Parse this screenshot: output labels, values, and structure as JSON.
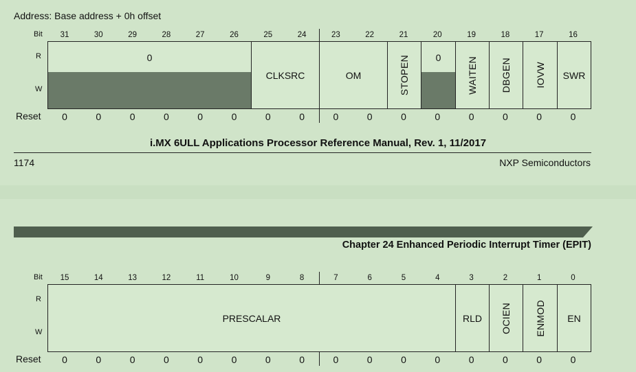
{
  "address_label": "Address: Base address + 0h offset",
  "bit_label": "Bit",
  "r_label": "R",
  "w_label": "W",
  "reset_label": "Reset",
  "top": {
    "bits": [
      "31",
      "30",
      "29",
      "28",
      "27",
      "26",
      "25",
      "24",
      "23",
      "22",
      "21",
      "20",
      "19",
      "18",
      "17",
      "16"
    ],
    "reserved_value": "0",
    "clksrc": "CLKSRC",
    "om": "OM",
    "stopen": "STOPEN",
    "bit20_value": "0",
    "waiten": "WAITEN",
    "dbgen": "DBGEN",
    "iovw": "IOVW",
    "swr": "SWR",
    "resets": [
      "0",
      "0",
      "0",
      "0",
      "0",
      "0",
      "0",
      "0",
      "0",
      "0",
      "0",
      "0",
      "0",
      "0",
      "0",
      "0"
    ]
  },
  "footer": {
    "manual_title": "i.MX 6ULL Applications Processor Reference Manual, Rev. 1, 11/2017",
    "page_number": "1174",
    "company": "NXP Semiconductors"
  },
  "chapter_title": "Chapter 24 Enhanced Periodic Interrupt Timer (EPIT)",
  "bottom": {
    "bits": [
      "15",
      "14",
      "13",
      "12",
      "11",
      "10",
      "9",
      "8",
      "7",
      "6",
      "5",
      "4",
      "3",
      "2",
      "1",
      "0"
    ],
    "prescalar": "PRESCALAR",
    "rld": "RLD",
    "ocien": "OCIEN",
    "enmod": "ENMOD",
    "en": "EN",
    "resets": [
      "0",
      "0",
      "0",
      "0",
      "0",
      "0",
      "0",
      "0",
      "0",
      "0",
      "0",
      "0",
      "0",
      "0",
      "0",
      "0"
    ]
  },
  "colors": {
    "background": "#d0e4c9",
    "reserved_fill": "#6a7a68",
    "chapter_bar": "#4f5f4e"
  }
}
